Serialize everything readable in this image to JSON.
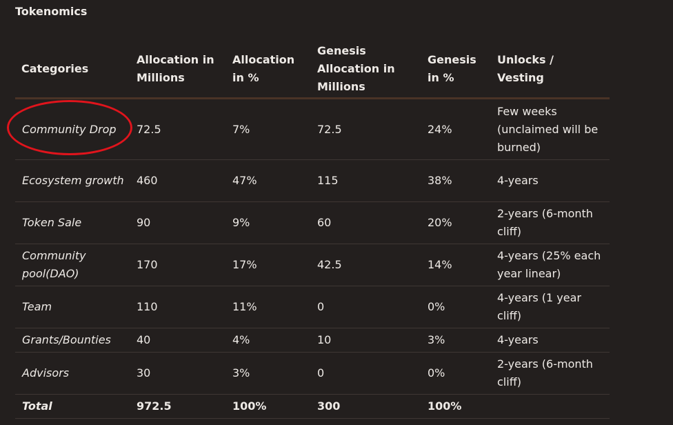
{
  "heading": "Tokenomics",
  "table": {
    "headers": [
      "Categories",
      "Allocation in Millions",
      "Allocation in %",
      "Genesis Allocation in Millions",
      "Genesis in %",
      "Unlocks / Vesting"
    ],
    "rows": [
      [
        "Community Drop",
        "72.5",
        "7%",
        "72.5",
        "24%",
        "Few weeks (unclaimed will be burned)"
      ],
      [
        "Ecosystem growth",
        "460",
        "47%",
        "115",
        "38%",
        "4-years"
      ],
      [
        "Token Sale",
        "90",
        "9%",
        "60",
        "20%",
        "2-years (6-month cliff)"
      ],
      [
        "Community pool(DAO)",
        "170",
        "17%",
        "42.5",
        "14%",
        "4-years (25% each year linear)"
      ],
      [
        "Team",
        "110",
        "11%",
        "0",
        "0%",
        "4-years (1 year cliff)"
      ],
      [
        "Grants/Bounties",
        "40",
        "4%",
        "10",
        "3%",
        "4-years"
      ],
      [
        "Advisors",
        "30",
        "3%",
        "0",
        "0%",
        "2-years (6-month cliff)"
      ]
    ],
    "total": [
      "Total",
      "972.5",
      "100%",
      "300",
      "100%",
      ""
    ]
  },
  "annotation": {
    "shape": "hand-drawn ellipse",
    "color": "#e0141c",
    "target": "Community Drop"
  }
}
